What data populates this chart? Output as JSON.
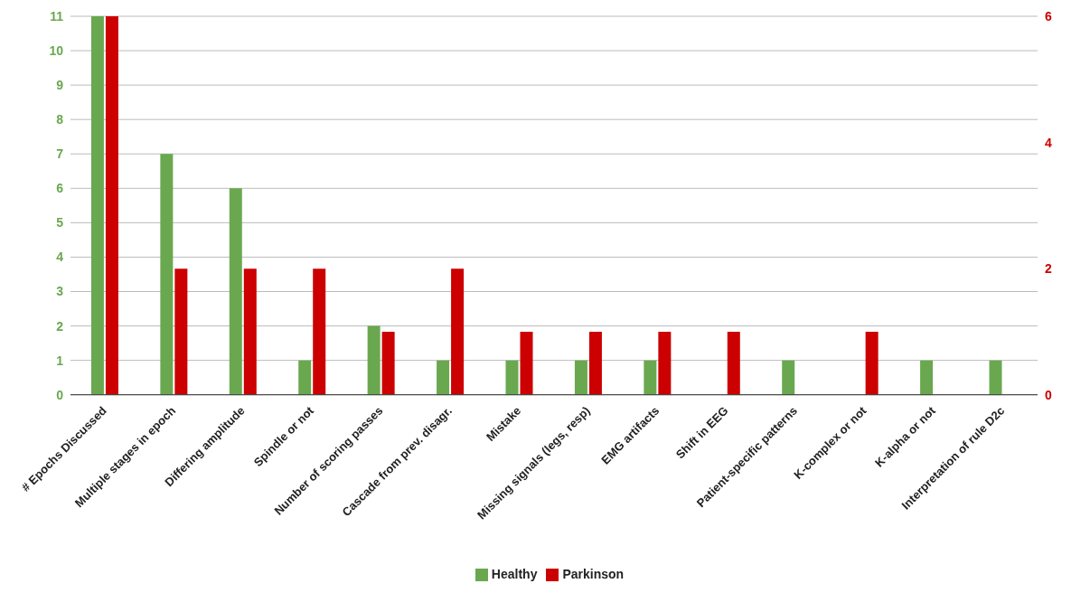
{
  "chart_data": {
    "type": "bar",
    "categories": [
      "# Epochs Discussed",
      "Multiple stages in epoch",
      "Differing amplitude",
      "Spindle or not",
      "Number of scoring passes",
      "Cascade from prev. disagr.",
      "Mistake",
      "Missing signals (legs, resp)",
      "EMG artifacts",
      "Shift in EEG",
      "Patient-specific patterns",
      "K-complex or not",
      "K-alpha or not",
      "Interpretation of rule D2c"
    ],
    "series": [
      {
        "name": "Healthy",
        "color": "#6aa84f",
        "values": [
          11,
          7,
          6,
          1,
          2,
          1,
          1,
          1,
          1,
          0,
          1,
          0,
          1,
          1
        ]
      },
      {
        "name": "Parkinson",
        "color": "#cc0000",
        "axis": "y2",
        "values": [
          6,
          2,
          2,
          2,
          1,
          2,
          1,
          1,
          1,
          1,
          0,
          1,
          0,
          0
        ]
      }
    ],
    "ylim": [
      0,
      11
    ],
    "yticks": [
      0,
      1,
      2,
      3,
      4,
      5,
      6,
      7,
      8,
      9,
      10,
      11
    ],
    "y2lim": [
      0,
      6
    ],
    "y2ticks": [
      0,
      2,
      4,
      6
    ],
    "grid": "y",
    "legend": "bottom"
  }
}
